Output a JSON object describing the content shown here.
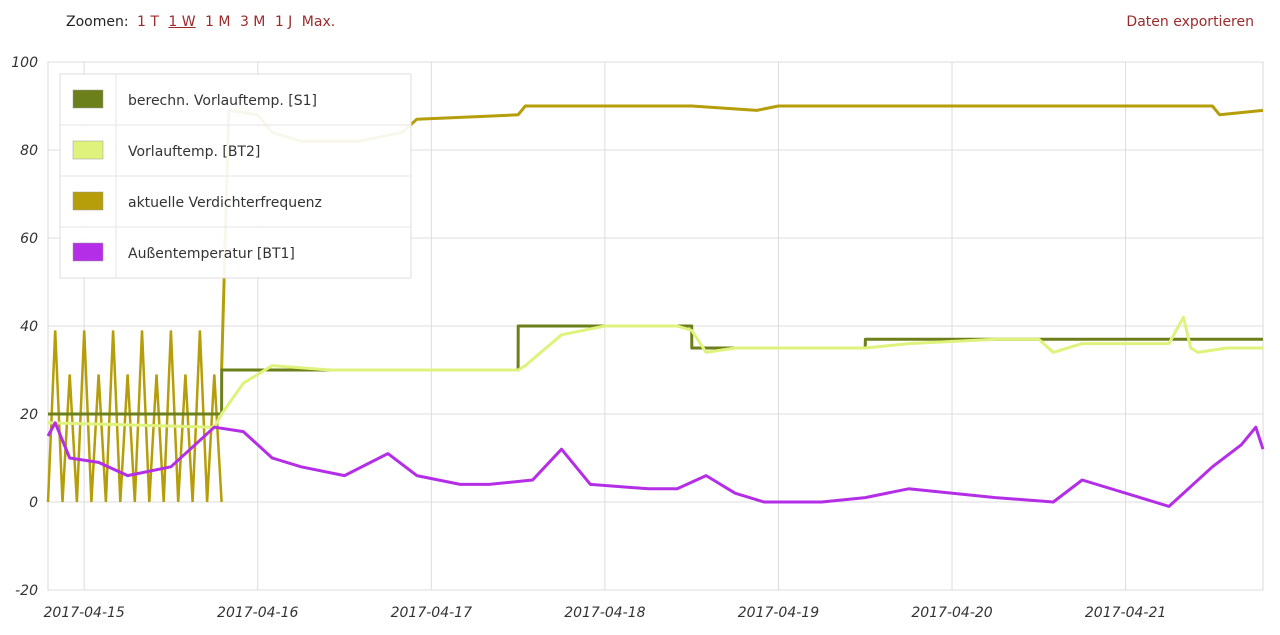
{
  "toolbar": {
    "zoom_label": "Zoomen:",
    "zoom_options": [
      "1 T",
      "1 W",
      "1 M",
      "3 M",
      "1 J",
      "Max."
    ],
    "active_zoom": "1 W",
    "export_label": "Daten exportieren"
  },
  "chart_data": {
    "type": "line",
    "title": "",
    "xlabel": "",
    "ylabel": "",
    "ylim": [
      -20,
      100
    ],
    "yticks": [
      -20,
      0,
      20,
      40,
      60,
      80,
      100
    ],
    "xlim": [
      "2017-04-14 19:00",
      "2017-04-21 19:00"
    ],
    "xticks": [
      "2017-04-15",
      "2017-04-16",
      "2017-04-17",
      "2017-04-18",
      "2017-04-19",
      "2017-04-20",
      "2017-04-21"
    ],
    "grid": true,
    "legend_position": "top-left",
    "series": [
      {
        "name": "berechn. Vorlauftemp. [S1]",
        "color": "#6b7f1a",
        "x": [
          "2017-04-14 19:00",
          "2017-04-15 19:00",
          "2017-04-15 19:01",
          "2017-04-17 12:00",
          "2017-04-17 12:01",
          "2017-04-18 12:00",
          "2017-04-18 12:01",
          "2017-04-19 12:00",
          "2017-04-19 12:01",
          "2017-04-21 19:00"
        ],
        "y": [
          20,
          20,
          30,
          30,
          40,
          40,
          35,
          35,
          37,
          37
        ]
      },
      {
        "name": "Vorlauftemp. [BT2]",
        "color": "#dff27c",
        "x": [
          "2017-04-14 19:00",
          "2017-04-15 18:00",
          "2017-04-15 19:00",
          "2017-04-15 22:00",
          "2017-04-16 02:00",
          "2017-04-16 10:00",
          "2017-04-17 12:00",
          "2017-04-17 13:00",
          "2017-04-17 18:00",
          "2017-04-18 00:00",
          "2017-04-18 10:00",
          "2017-04-18 12:00",
          "2017-04-18 14:00",
          "2017-04-18 18:00",
          "2017-04-19 06:00",
          "2017-04-19 12:00",
          "2017-04-19 18:00",
          "2017-04-20 06:00",
          "2017-04-20 12:00",
          "2017-04-20 14:00",
          "2017-04-20 18:00",
          "2017-04-21 06:00",
          "2017-04-21 08:00",
          "2017-04-21 09:00",
          "2017-04-21 10:00",
          "2017-04-21 14:00",
          "2017-04-21 19:00"
        ],
        "y": [
          18,
          17,
          20,
          27,
          31,
          30,
          30,
          31,
          38,
          40,
          40,
          39,
          34,
          35,
          35,
          35,
          36,
          37,
          37,
          34,
          36,
          36,
          42,
          35,
          34,
          35,
          35
        ]
      },
      {
        "name": "aktuelle Verdichterfrequenz",
        "color": "#b59e0a",
        "x": [
          "2017-04-14 19:00",
          "2017-04-15 19:00",
          "2017-04-15 20:00",
          "2017-04-16 00:00",
          "2017-04-16 02:00",
          "2017-04-16 06:00",
          "2017-04-16 10:00",
          "2017-04-16 14:00",
          "2017-04-16 20:00",
          "2017-04-16 22:00",
          "2017-04-17 12:00",
          "2017-04-17 13:00",
          "2017-04-18 12:00",
          "2017-04-18 21:00",
          "2017-04-19 00:00",
          "2017-04-21 12:00",
          "2017-04-21 13:00",
          "2017-04-21 19:00"
        ],
        "y": [
          0,
          30,
          89,
          88,
          84,
          82,
          82,
          82,
          84,
          87,
          88,
          90,
          90,
          89,
          90,
          90,
          88,
          89
        ]
      },
      {
        "name": "Außentemperatur [BT1]",
        "color": "#b32ee6",
        "x": [
          "2017-04-14 19:00",
          "2017-04-14 20:00",
          "2017-04-14 22:00",
          "2017-04-15 02:00",
          "2017-04-15 06:00",
          "2017-04-15 12:00",
          "2017-04-15 18:00",
          "2017-04-15 22:00",
          "2017-04-16 02:00",
          "2017-04-16 06:00",
          "2017-04-16 12:00",
          "2017-04-16 18:00",
          "2017-04-16 22:00",
          "2017-04-17 04:00",
          "2017-04-17 08:00",
          "2017-04-17 14:00",
          "2017-04-17 18:00",
          "2017-04-17 22:00",
          "2017-04-18 06:00",
          "2017-04-18 10:00",
          "2017-04-18 14:00",
          "2017-04-18 18:00",
          "2017-04-18 22:00",
          "2017-04-19 06:00",
          "2017-04-19 12:00",
          "2017-04-19 18:00",
          "2017-04-20 06:00",
          "2017-04-20 14:00",
          "2017-04-20 18:00",
          "2017-04-21 02:00",
          "2017-04-21 06:00",
          "2017-04-21 12:00",
          "2017-04-21 16:00",
          "2017-04-21 18:00",
          "2017-04-21 19:00"
        ],
        "y": [
          15,
          18,
          10,
          9,
          6,
          8,
          17,
          16,
          10,
          8,
          6,
          11,
          6,
          4,
          4,
          5,
          12,
          4,
          3,
          3,
          6,
          2,
          0,
          0,
          1,
          3,
          1,
          0,
          5,
          1,
          -1,
          8,
          13,
          17,
          12
        ]
      }
    ],
    "series_extra": {
      "compressor_cycling_2017-04-15": {
        "low": 0,
        "high": 39,
        "mid": 29,
        "note": "rapid on/off cycling before 2017-04-15 19:00"
      }
    }
  }
}
